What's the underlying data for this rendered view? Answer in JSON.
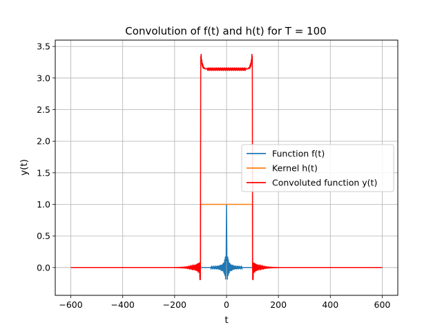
{
  "chart_data": {
    "type": "line",
    "title": "Convolution of f(t) and h(t) for T = 100",
    "xlabel": "t",
    "ylabel": "y(t)",
    "xlim": [
      -660,
      660
    ],
    "ylim": [
      -0.44,
      3.6
    ],
    "xticks": [
      -600,
      -400,
      -200,
      0,
      200,
      400,
      600
    ],
    "xtick_labels": [
      "−600",
      "−400",
      "−200",
      "0",
      "200",
      "400",
      "600"
    ],
    "yticks": [
      0.0,
      0.5,
      1.0,
      1.5,
      2.0,
      2.5,
      3.0,
      3.5
    ],
    "ytick_labels": [
      "0.0",
      "0.5",
      "1.0",
      "1.5",
      "2.0",
      "2.5",
      "3.0",
      "3.5"
    ],
    "grid": true,
    "legend_position": "center-right",
    "series": [
      {
        "name": "Function f(t)",
        "color": "#1f77b4",
        "description_points": {
          "x": [
            -600,
            -60,
            -40,
            -20,
            -10,
            -5,
            -2,
            0,
            2,
            5,
            10,
            20,
            40,
            60,
            600
          ],
          "y": [
            0.0,
            0.0,
            0.02,
            0.05,
            0.12,
            -0.17,
            0.3,
            1.0,
            0.3,
            -0.17,
            0.12,
            0.05,
            0.02,
            0.0,
            0.0
          ]
        }
      },
      {
        "name": "Kernel h(t)",
        "color": "#ff7f0e",
        "x": [
          -100,
          -100,
          100,
          100
        ],
        "y": [
          0.0,
          1.0,
          1.0,
          0.0
        ]
      },
      {
        "name": "Convoluted function y(t)",
        "color": "#ff0000",
        "x": [
          -600,
          -200,
          -150,
          -120,
          -105,
          -100,
          -99,
          -95,
          -90,
          -50,
          0,
          50,
          90,
          95,
          99,
          100,
          105,
          120,
          150,
          200,
          600
        ],
        "y": [
          0.0,
          0.0,
          0.03,
          0.08,
          -0.27,
          1.57,
          3.42,
          3.22,
          3.17,
          3.15,
          3.14,
          3.15,
          3.17,
          3.22,
          3.42,
          1.57,
          -0.27,
          0.08,
          0.03,
          0.0,
          0.0
        ]
      }
    ]
  }
}
